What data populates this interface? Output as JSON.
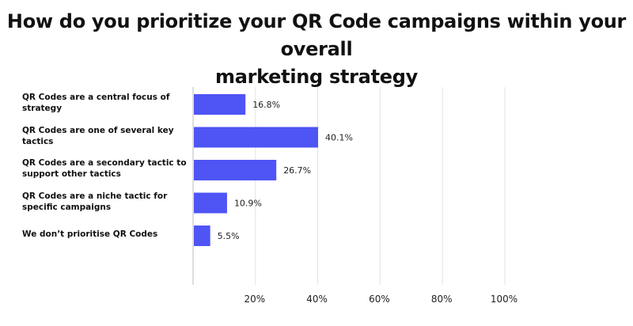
{
  "chart_data": {
    "type": "bar",
    "orientation": "horizontal",
    "title_lines": [
      "How do you prioritize your QR Code campaigns within your overall",
      "marketing strategy"
    ],
    "categories": [
      "QR Codes are a central focus of strategy",
      "QR Codes are one of several key tactics",
      "QR Codes are a secondary tactic to support other tactics",
      "QR Codes are a niche tactic for specific campaigns",
      "We don’t prioritise QR Codes"
    ],
    "values": [
      16.8,
      40.1,
      26.7,
      10.9,
      5.5
    ],
    "value_labels": [
      "16.8%",
      "40.1%",
      "26.7%",
      "10.9%",
      "5.5%"
    ],
    "xlim": [
      0,
      100
    ],
    "xticks": [
      20,
      40,
      60,
      80,
      100
    ],
    "xtick_labels": [
      "20%",
      "40%",
      "60%",
      "80%",
      "100%"
    ],
    "grid": true,
    "bar_color": "#4f54f5",
    "grid_color": "#e3e3e3"
  }
}
